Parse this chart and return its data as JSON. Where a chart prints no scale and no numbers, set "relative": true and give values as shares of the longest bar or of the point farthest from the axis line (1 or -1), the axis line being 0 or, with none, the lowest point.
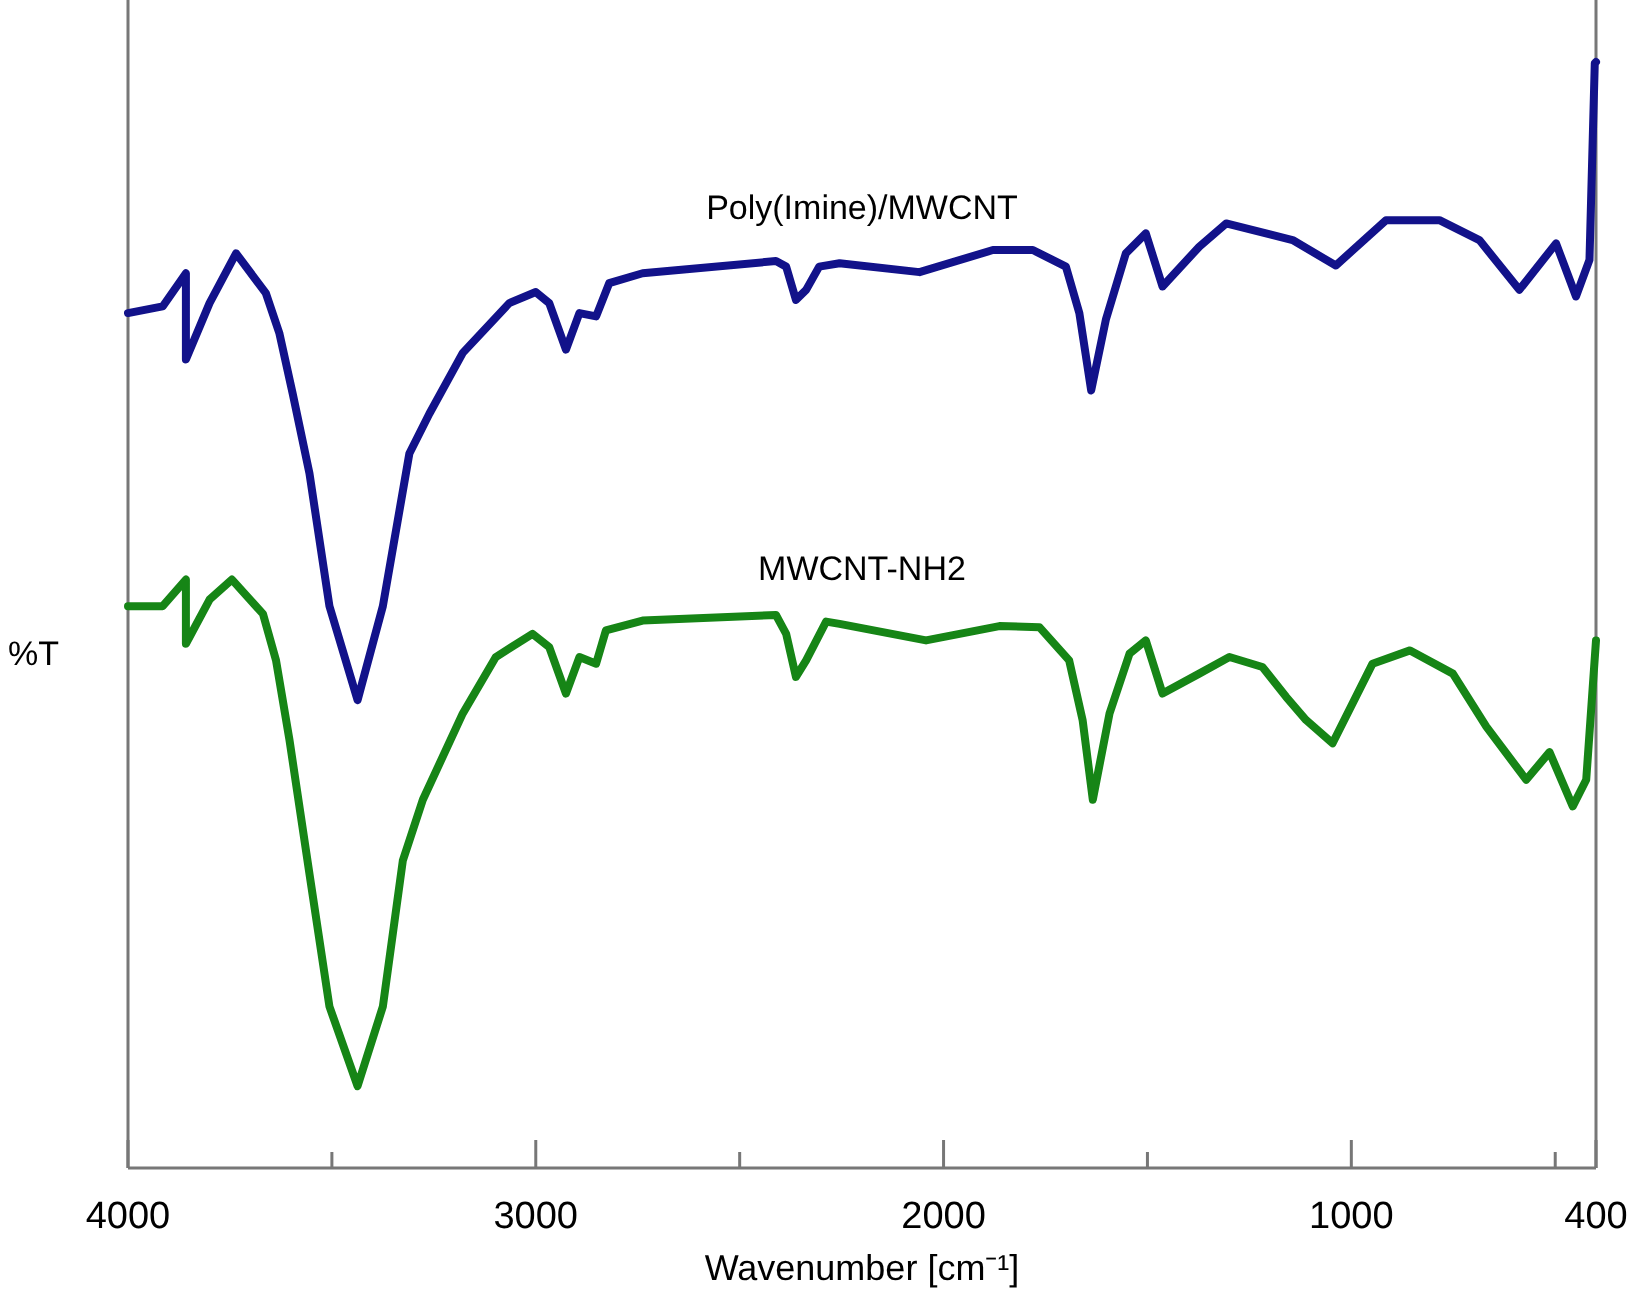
{
  "chart_data": {
    "type": "line",
    "relative": true,
    "xlabel": "Wavenumber [cm⁻¹]",
    "ylabel": "%T",
    "xlim": [
      4000,
      400
    ],
    "xticks": [
      4000,
      {
        "value": 3500,
        "label": null
      },
      3000,
      {
        "value": 2500,
        "label": null
      },
      2000,
      {
        "value": 1500,
        "label": null
      },
      1000,
      {
        "value": 500,
        "label": null
      },
      400
    ],
    "grid": false,
    "marker": "none",
    "line_style": "solid",
    "series": [
      {
        "name": "Poly(Imine)/MWCNT",
        "color": "#12128a",
        "x": [
          4000,
          3915,
          3858,
          3858,
          3800,
          3735,
          3662,
          3629,
          3596,
          3555,
          3506,
          3437,
          3375,
          3310,
          3261,
          3179,
          3065,
          3000,
          2967,
          2926,
          2893,
          2852,
          2820,
          2738,
          2411,
          2386,
          2362,
          2337,
          2305,
          2255,
          2059,
          1879,
          1781,
          1700,
          1667,
          1638,
          1602,
          1553,
          1504,
          1463,
          1373,
          1307,
          1144,
          1038,
          915,
          784,
          686,
          588,
          498,
          449,
          416,
          403,
          400
        ],
        "values": [
          0.773,
          0.779,
          0.809,
          0.731,
          0.782,
          0.827,
          0.791,
          0.755,
          0.7,
          0.628,
          0.508,
          0.423,
          0.508,
          0.646,
          0.682,
          0.737,
          0.782,
          0.792,
          0.782,
          0.74,
          0.773,
          0.77,
          0.8,
          0.809,
          0.82,
          0.815,
          0.785,
          0.794,
          0.815,
          0.818,
          0.81,
          0.83,
          0.83,
          0.815,
          0.773,
          0.703,
          0.767,
          0.827,
          0.845,
          0.797,
          0.833,
          0.854,
          0.839,
          0.816,
          0.857,
          0.857,
          0.839,
          0.794,
          0.836,
          0.788,
          0.821,
          0.999,
          1
        ]
      },
      {
        "name": "MWCNT-NH2",
        "color": "#168516",
        "x": [
          4000,
          3915,
          3858,
          3858,
          3800,
          3745,
          3669,
          3637,
          3604,
          3555,
          3506,
          3437,
          3375,
          3326,
          3277,
          3179,
          3098,
          3008,
          2967,
          2926,
          2893,
          2852,
          2828,
          2738,
          2411,
          2386,
          2362,
          2337,
          2288,
          2255,
          2043,
          1863,
          1765,
          1692,
          1659,
          1634,
          1593,
          1544,
          1504,
          1463,
          1373,
          1299,
          1218,
          1160,
          1111,
          1046,
          948,
          856,
          751,
          669,
          571,
          514,
          457,
          424,
          400
        ],
        "values": [
          0.508,
          0.508,
          0.532,
          0.474,
          0.514,
          0.532,
          0.501,
          0.459,
          0.387,
          0.266,
          0.146,
          0.074,
          0.146,
          0.278,
          0.333,
          0.411,
          0.462,
          0.483,
          0.471,
          0.429,
          0.462,
          0.456,
          0.486,
          0.495,
          0.5,
          0.483,
          0.444,
          0.459,
          0.494,
          0.492,
          0.477,
          0.49,
          0.489,
          0.459,
          0.405,
          0.333,
          0.411,
          0.465,
          0.477,
          0.429,
          0.447,
          0.462,
          0.453,
          0.426,
          0.405,
          0.384,
          0.456,
          0.468,
          0.447,
          0.399,
          0.351,
          0.376,
          0.327,
          0.351,
          0.477
        ]
      }
    ]
  }
}
